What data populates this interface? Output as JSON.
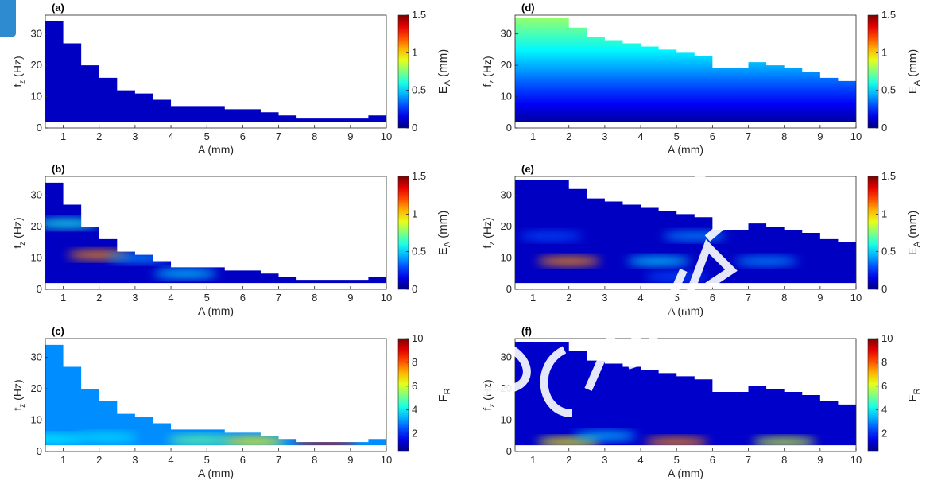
{
  "chart_data": [
    {
      "panel": "(a)",
      "type": "heatmap",
      "xlabel": "A (mm)",
      "ylabel": "f_z (Hz)",
      "xlim": [
        0.5,
        10
      ],
      "ylim": [
        0,
        36
      ],
      "x_ticks": [
        1,
        2,
        3,
        4,
        5,
        6,
        7,
        8,
        9,
        10
      ],
      "y_ticks": [
        0,
        10,
        20,
        30
      ],
      "colorbar": {
        "label": "E_A (mm)",
        "ticks": [
          0,
          0.5,
          1,
          1.5
        ],
        "range": [
          0,
          1.5
        ]
      },
      "boundary": {
        "A": [
          0.5,
          1,
          1.5,
          2,
          2.5,
          3,
          3.5,
          4,
          4.5,
          5,
          5.5,
          6,
          6.5,
          7,
          7.5,
          8,
          8.5,
          9,
          9.5,
          10
        ],
        "fz_max": [
          34,
          27,
          20,
          16,
          12,
          11,
          9,
          7,
          7,
          7,
          6,
          6,
          5,
          4,
          3,
          3,
          3,
          3,
          4,
          4
        ]
      },
      "fz_min": 2,
      "hotspots": [],
      "base_value": 0.1
    },
    {
      "panel": "(b)",
      "type": "heatmap",
      "xlabel": "A (mm)",
      "ylabel": "f_z (Hz)",
      "xlim": [
        0.5,
        10
      ],
      "ylim": [
        0,
        36
      ],
      "x_ticks": [
        1,
        2,
        3,
        4,
        5,
        6,
        7,
        8,
        9,
        10
      ],
      "y_ticks": [
        0,
        10,
        20,
        30
      ],
      "colorbar": {
        "label": "E_A (mm)",
        "ticks": [
          0,
          0.5,
          1,
          1.5
        ],
        "range": [
          0,
          1.5
        ]
      },
      "boundary": {
        "A": [
          0.5,
          1,
          1.5,
          2,
          2.5,
          3,
          3.5,
          4,
          4.5,
          5,
          5.5,
          6,
          6.5,
          7,
          7.5,
          8,
          8.5,
          9,
          9.5,
          10
        ],
        "fz_max": [
          34,
          27,
          20,
          16,
          12,
          11,
          9,
          7,
          7,
          7,
          6,
          6,
          5,
          4,
          3,
          3,
          3,
          3,
          4,
          4
        ]
      },
      "fz_min": 2,
      "hotspots": [
        {
          "A": 2.0,
          "fz": 11,
          "value": 1.1
        },
        {
          "A": 1.1,
          "fz": 21,
          "value": 0.6
        },
        {
          "A": 4.4,
          "fz": 5,
          "value": 0.5
        },
        {
          "A": 3.1,
          "fz": 10,
          "value": 0.4
        }
      ],
      "base_value": 0.1
    },
    {
      "panel": "(c)",
      "type": "heatmap",
      "xlabel": "A (mm)",
      "ylabel": "f_z (Hz)",
      "xlim": [
        0.5,
        10
      ],
      "ylim": [
        0,
        36
      ],
      "x_ticks": [
        1,
        2,
        3,
        4,
        5,
        6,
        7,
        8,
        9,
        10
      ],
      "y_ticks": [
        0,
        10,
        20,
        30
      ],
      "colorbar": {
        "label": "F_R",
        "ticks": [
          2,
          4,
          6,
          8,
          10
        ],
        "range": [
          0.5,
          10
        ]
      },
      "boundary": {
        "A": [
          0.5,
          1,
          1.5,
          2,
          2.5,
          3,
          3.5,
          4,
          4.5,
          5,
          5.5,
          6,
          6.5,
          7,
          7.5,
          8,
          8.5,
          9,
          9.5,
          10
        ],
        "fz_max": [
          34,
          27,
          20,
          16,
          12,
          11,
          9,
          7,
          7,
          7,
          6,
          6,
          5,
          4,
          3,
          3,
          3,
          3,
          4,
          4
        ]
      },
      "fz_min": 2,
      "hotspots": [
        {
          "A": 8.3,
          "fz": 2.8,
          "value": 9.5
        },
        {
          "A": 6.3,
          "fz": 3.2,
          "value": 6.5
        },
        {
          "A": 4.8,
          "fz": 3.6,
          "value": 5.0
        },
        {
          "A": 2.2,
          "fz": 4.5,
          "value": 3.8
        },
        {
          "A": 0.7,
          "fz": 4.0,
          "value": 4.0
        }
      ],
      "base_value": 3.0
    },
    {
      "panel": "(d)",
      "type": "heatmap",
      "xlabel": "A (mm)",
      "ylabel": "f_z (Hz)",
      "xlim": [
        0.5,
        10
      ],
      "ylim": [
        0,
        36
      ],
      "x_ticks": [
        1,
        2,
        3,
        4,
        5,
        6,
        7,
        8,
        9,
        10
      ],
      "y_ticks": [
        0,
        10,
        20,
        30
      ],
      "colorbar": {
        "label": "E_A (mm)",
        "ticks": [
          0,
          0.5,
          1,
          1.5
        ],
        "range": [
          0,
          1.5
        ]
      },
      "boundary": {
        "A": [
          0.5,
          1,
          1.5,
          2,
          2.5,
          3,
          3.5,
          4,
          4.5,
          5,
          5.5,
          6,
          6.5,
          7,
          7.5,
          8,
          8.5,
          9,
          9.5,
          10
        ],
        "fz_max": [
          35,
          35,
          35,
          32,
          29,
          28,
          27,
          26,
          25,
          24,
          23,
          19,
          19,
          21,
          20,
          19,
          18,
          16,
          15,
          14
        ]
      },
      "fz_min": 2,
      "hotspots": [],
      "gradient": {
        "low": 0.05,
        "high": 0.8
      },
      "base_value": 0.1
    },
    {
      "panel": "(e)",
      "type": "heatmap",
      "xlabel": "A (mm)",
      "ylabel": "f_z (Hz)",
      "xlim": [
        0.5,
        10
      ],
      "ylim": [
        0,
        36
      ],
      "x_ticks": [
        1,
        2,
        3,
        4,
        5,
        6,
        7,
        8,
        9,
        10
      ],
      "y_ticks": [
        0,
        10,
        20,
        30
      ],
      "colorbar": {
        "label": "E_A (mm)",
        "ticks": [
          0,
          0.5,
          1,
          1.5
        ],
        "range": [
          0,
          1.5
        ]
      },
      "boundary": {
        "A": [
          0.5,
          1,
          1.5,
          2,
          2.5,
          3,
          3.5,
          4,
          4.5,
          5,
          5.5,
          6,
          6.5,
          7,
          7.5,
          8,
          8.5,
          9,
          9.5,
          10
        ],
        "fz_max": [
          35,
          35,
          35,
          32,
          29,
          28,
          27,
          26,
          25,
          24,
          23,
          19,
          19,
          21,
          20,
          19,
          18,
          16,
          15,
          14
        ]
      },
      "fz_min": 2,
      "hotspots": [
        {
          "A": 2.0,
          "fz": 9,
          "value": 1.1
        },
        {
          "A": 4.5,
          "fz": 9,
          "value": 0.5
        },
        {
          "A": 7.5,
          "fz": 9,
          "value": 0.4
        },
        {
          "A": 5.5,
          "fz": 17,
          "value": 0.4
        },
        {
          "A": 1.5,
          "fz": 17,
          "value": 0.3
        },
        {
          "A": 5.0,
          "fz": 4,
          "value": 0.3
        }
      ],
      "base_value": 0.1
    },
    {
      "panel": "(f)",
      "type": "heatmap",
      "xlabel": "A (mm)",
      "ylabel": "f_z (Hz)",
      "xlim": [
        0.5,
        10
      ],
      "ylim": [
        0,
        36
      ],
      "x_ticks": [
        1,
        2,
        3,
        4,
        5,
        6,
        7,
        8,
        9,
        10
      ],
      "y_ticks": [
        0,
        10,
        20,
        30
      ],
      "colorbar": {
        "label": "F_R",
        "ticks": [
          2,
          4,
          6,
          8,
          10
        ],
        "range": [
          0.5,
          10
        ]
      },
      "boundary": {
        "A": [
          0.5,
          1,
          1.5,
          2,
          2.5,
          3,
          3.5,
          4,
          4.5,
          5,
          5.5,
          6,
          6.5,
          7,
          7.5,
          8,
          8.5,
          9,
          9.5,
          10
        ],
        "fz_max": [
          35,
          35,
          35,
          32,
          29,
          28,
          27,
          26,
          25,
          24,
          23,
          19,
          19,
          21,
          20,
          19,
          18,
          16,
          15,
          14
        ]
      },
      "fz_min": 2,
      "hotspots": [
        {
          "A": 5.0,
          "fz": 3,
          "value": 7.5
        },
        {
          "A": 2.0,
          "fz": 3,
          "value": 6.5
        },
        {
          "A": 8.0,
          "fz": 3,
          "value": 6.0
        },
        {
          "A": 3.0,
          "fz": 5,
          "value": 3.5
        }
      ],
      "base_value": 1.2
    }
  ]
}
